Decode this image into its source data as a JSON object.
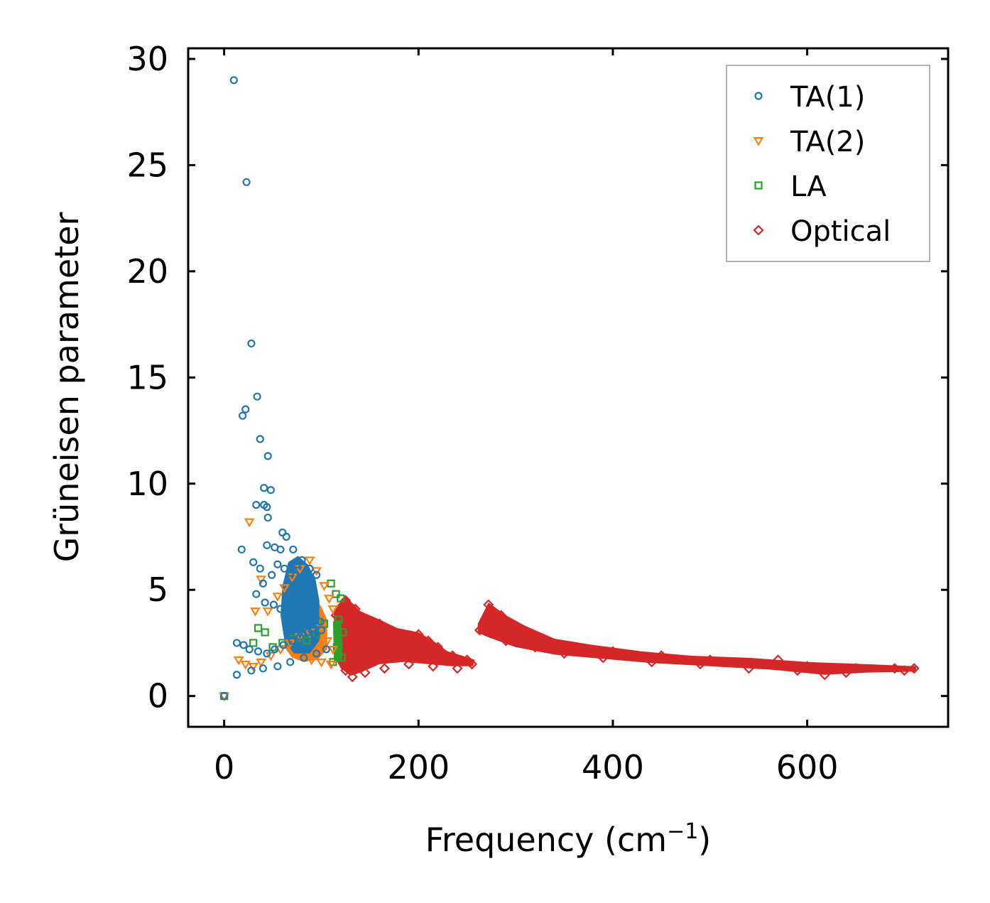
{
  "chart_data": {
    "type": "scatter",
    "title": "",
    "xlabel_main": "Frequency (cm",
    "xlabel_sup": "−1",
    "xlabel_close": ")",
    "ylabel": "Grüneisen parameter",
    "xlim": [
      -37,
      745
    ],
    "ylim": [
      -1.45,
      30.5
    ],
    "xticks": [
      0,
      200,
      400,
      600
    ],
    "yticks": [
      0,
      5,
      10,
      15,
      20,
      25,
      30
    ],
    "legend_position": "top-right",
    "series": [
      {
        "name": "TA(1)",
        "marker": "circle",
        "color": "#1f77b4",
        "points": [
          [
            0,
            0
          ],
          [
            10,
            29.0
          ],
          [
            23,
            24.2
          ],
          [
            28,
            16.6
          ],
          [
            34,
            14.1
          ],
          [
            22,
            13.5
          ],
          [
            19,
            13.2
          ],
          [
            37,
            12.1
          ],
          [
            45,
            11.3
          ],
          [
            41,
            9.8
          ],
          [
            48,
            9.7
          ],
          [
            33,
            9.0
          ],
          [
            41,
            9.0
          ],
          [
            44,
            8.9
          ],
          [
            45,
            8.4
          ],
          [
            18,
            6.9
          ],
          [
            60,
            7.7
          ],
          [
            64,
            7.5
          ],
          [
            44,
            7.1
          ],
          [
            52,
            7.0
          ],
          [
            58,
            6.9
          ],
          [
            71,
            6.9
          ],
          [
            30,
            6.3
          ],
          [
            37,
            6.0
          ],
          [
            40,
            5.3
          ],
          [
            49,
            5.7
          ],
          [
            55,
            6.2
          ],
          [
            62,
            6.0
          ],
          [
            68,
            5.8
          ],
          [
            75,
            6.2
          ],
          [
            80,
            6.4
          ],
          [
            88,
            6.0
          ],
          [
            95,
            5.7
          ],
          [
            33,
            4.8
          ],
          [
            42,
            4.4
          ],
          [
            51,
            4.3
          ],
          [
            58,
            4.1
          ],
          [
            66,
            4.0
          ],
          [
            72,
            3.8
          ],
          [
            79,
            3.6
          ],
          [
            85,
            3.4
          ],
          [
            92,
            3.2
          ],
          [
            99,
            3.5
          ],
          [
            13,
            2.5
          ],
          [
            20,
            2.4
          ],
          [
            26,
            2.2
          ],
          [
            35,
            2.1
          ],
          [
            44,
            2.0
          ],
          [
            52,
            2.2
          ],
          [
            61,
            2.4
          ],
          [
            70,
            2.6
          ],
          [
            78,
            2.8
          ],
          [
            86,
            3.0
          ],
          [
            93,
            2.9
          ],
          [
            100,
            3.1
          ],
          [
            13,
            1.0
          ],
          [
            28,
            1.2
          ],
          [
            40,
            1.3
          ],
          [
            55,
            1.4
          ],
          [
            68,
            1.6
          ],
          [
            82,
            1.8
          ],
          [
            95,
            2.0
          ],
          [
            105,
            2.2
          ]
        ]
      },
      {
        "name": "TA(2)",
        "marker": "triangle-down",
        "color": "#ff7f0e",
        "points": [
          [
            0,
            0
          ],
          [
            26,
            8.2
          ],
          [
            32,
            4.0
          ],
          [
            38,
            5.5
          ],
          [
            45,
            4.0
          ],
          [
            55,
            4.7
          ],
          [
            62,
            5.1
          ],
          [
            70,
            5.6
          ],
          [
            78,
            6.0
          ],
          [
            88,
            6.4
          ],
          [
            95,
            5.9
          ],
          [
            103,
            5.2
          ],
          [
            108,
            4.6
          ],
          [
            112,
            4.1
          ],
          [
            15,
            1.7
          ],
          [
            22,
            1.5
          ],
          [
            30,
            1.4
          ],
          [
            38,
            1.6
          ],
          [
            48,
            1.9
          ],
          [
            58,
            2.2
          ],
          [
            68,
            2.5
          ],
          [
            78,
            2.8
          ],
          [
            88,
            3.0
          ],
          [
            98,
            3.2
          ],
          [
            106,
            2.6
          ],
          [
            112,
            2.2
          ],
          [
            90,
            1.7
          ],
          [
            100,
            1.6
          ],
          [
            110,
            1.5
          ]
        ]
      },
      {
        "name": "LA",
        "marker": "square",
        "color": "#2ca02c",
        "points": [
          [
            0,
            0
          ],
          [
            35,
            3.2
          ],
          [
            42,
            3.0
          ],
          [
            30,
            2.5
          ],
          [
            50,
            2.3
          ],
          [
            60,
            2.5
          ],
          [
            72,
            2.7
          ],
          [
            85,
            2.6
          ],
          [
            95,
            2.9
          ],
          [
            103,
            3.4
          ],
          [
            110,
            5.3
          ],
          [
            115,
            4.8
          ],
          [
            120,
            4.6
          ],
          [
            118,
            3.6
          ],
          [
            122,
            3.0
          ],
          [
            116,
            2.3
          ],
          [
            121,
            1.8
          ],
          [
            112,
            1.6
          ]
        ]
      },
      {
        "name": "Optical",
        "marker": "diamond",
        "color": "#d62728",
        "points": [
          [
            115,
            3.8
          ],
          [
            125,
            4.5
          ],
          [
            135,
            4.1
          ],
          [
            145,
            3.6
          ],
          [
            160,
            3.4
          ],
          [
            180,
            2.8
          ],
          [
            200,
            2.9
          ],
          [
            210,
            2.6
          ],
          [
            220,
            2.3
          ],
          [
            235,
            1.9
          ],
          [
            250,
            1.7
          ],
          [
            255,
            1.5
          ],
          [
            125,
            1.2
          ],
          [
            132,
            0.9
          ],
          [
            145,
            1.1
          ],
          [
            165,
            1.3
          ],
          [
            190,
            1.5
          ],
          [
            215,
            1.4
          ],
          [
            240,
            1.3
          ],
          [
            263,
            3.1
          ],
          [
            272,
            4.3
          ],
          [
            285,
            3.8
          ],
          [
            300,
            3.3
          ],
          [
            330,
            2.6
          ],
          [
            360,
            2.3
          ],
          [
            400,
            2.1
          ],
          [
            450,
            1.9
          ],
          [
            500,
            1.7
          ],
          [
            550,
            1.5
          ],
          [
            570,
            1.7
          ],
          [
            600,
            1.4
          ],
          [
            618,
            1.0
          ],
          [
            650,
            1.3
          ],
          [
            690,
            1.3
          ],
          [
            710,
            1.3
          ],
          [
            290,
            2.6
          ],
          [
            320,
            2.3
          ],
          [
            350,
            2.0
          ],
          [
            390,
            1.8
          ],
          [
            440,
            1.6
          ],
          [
            490,
            1.5
          ],
          [
            540,
            1.3
          ],
          [
            590,
            1.2
          ],
          [
            640,
            1.1
          ],
          [
            700,
            1.2
          ]
        ]
      }
    ]
  }
}
